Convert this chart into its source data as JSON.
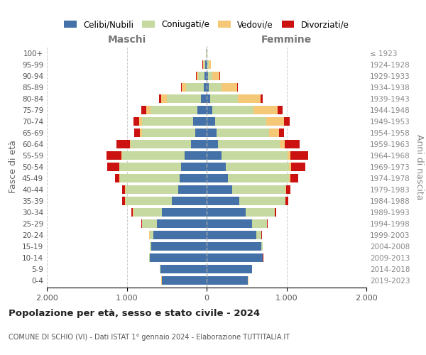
{
  "age_groups": [
    "100+",
    "95-99",
    "90-94",
    "85-89",
    "80-84",
    "75-79",
    "70-74",
    "65-69",
    "60-64",
    "55-59",
    "50-54",
    "45-49",
    "40-44",
    "35-39",
    "30-34",
    "25-29",
    "20-24",
    "15-19",
    "10-14",
    "5-9",
    "0-4"
  ],
  "birth_years": [
    "≤ 1923",
    "1924-1928",
    "1929-1933",
    "1934-1938",
    "1939-1943",
    "1944-1948",
    "1949-1953",
    "1954-1958",
    "1959-1963",
    "1964-1968",
    "1969-1973",
    "1974-1978",
    "1979-1983",
    "1984-1988",
    "1989-1993",
    "1994-1998",
    "1999-2003",
    "2004-2008",
    "2009-2013",
    "2014-2018",
    "2019-2023"
  ],
  "males_celibi": [
    4,
    18,
    28,
    38,
    75,
    120,
    165,
    140,
    200,
    280,
    320,
    340,
    360,
    440,
    560,
    620,
    665,
    695,
    715,
    580,
    560
  ],
  "males_coniugati": [
    4,
    20,
    75,
    220,
    420,
    580,
    640,
    670,
    750,
    780,
    770,
    745,
    655,
    575,
    360,
    185,
    50,
    15,
    4,
    4,
    4
  ],
  "males_vedovi": [
    2,
    8,
    25,
    50,
    70,
    52,
    42,
    25,
    8,
    8,
    4,
    4,
    4,
    4,
    4,
    4,
    4,
    2,
    2,
    2,
    2
  ],
  "males_divorziati": [
    1,
    4,
    8,
    16,
    35,
    70,
    70,
    70,
    170,
    185,
    150,
    62,
    42,
    35,
    16,
    8,
    4,
    2,
    2,
    2,
    2
  ],
  "females_nubili": [
    4,
    12,
    20,
    25,
    42,
    70,
    108,
    120,
    140,
    188,
    238,
    268,
    318,
    408,
    485,
    565,
    625,
    685,
    700,
    565,
    515
  ],
  "females_coniugate": [
    4,
    16,
    50,
    158,
    345,
    520,
    640,
    665,
    772,
    822,
    792,
    762,
    672,
    575,
    368,
    188,
    58,
    16,
    4,
    4,
    4
  ],
  "females_vedove": [
    4,
    25,
    88,
    200,
    288,
    298,
    222,
    118,
    70,
    42,
    25,
    16,
    8,
    8,
    4,
    4,
    4,
    2,
    2,
    2,
    2
  ],
  "females_divorziate": [
    1,
    4,
    8,
    12,
    25,
    60,
    70,
    70,
    178,
    218,
    178,
    98,
    50,
    35,
    16,
    8,
    4,
    2,
    2,
    2,
    2
  ],
  "color_celibi": "#4472a8",
  "color_coniugati": "#c5d9a0",
  "color_vedovi": "#f5c878",
  "color_divorziati": "#cc1111",
  "title": "Popolazione per età, sesso e stato civile - 2024",
  "subtitle": "COMUNE DI SCHIO (VI) - Dati ISTAT 1° gennaio 2024 - Elaborazione TUTTITALIA.IT",
  "label_maschi": "Maschi",
  "label_femmine": "Femmine",
  "ylabel_left": "Fasce di età",
  "ylabel_right": "Anni di nascita",
  "xlim": 2000,
  "legend_labels": [
    "Celibi/Nubili",
    "Coniugati/e",
    "Vedovi/e",
    "Divorziati/e"
  ],
  "background_color": "#ffffff",
  "bar_height": 0.75
}
